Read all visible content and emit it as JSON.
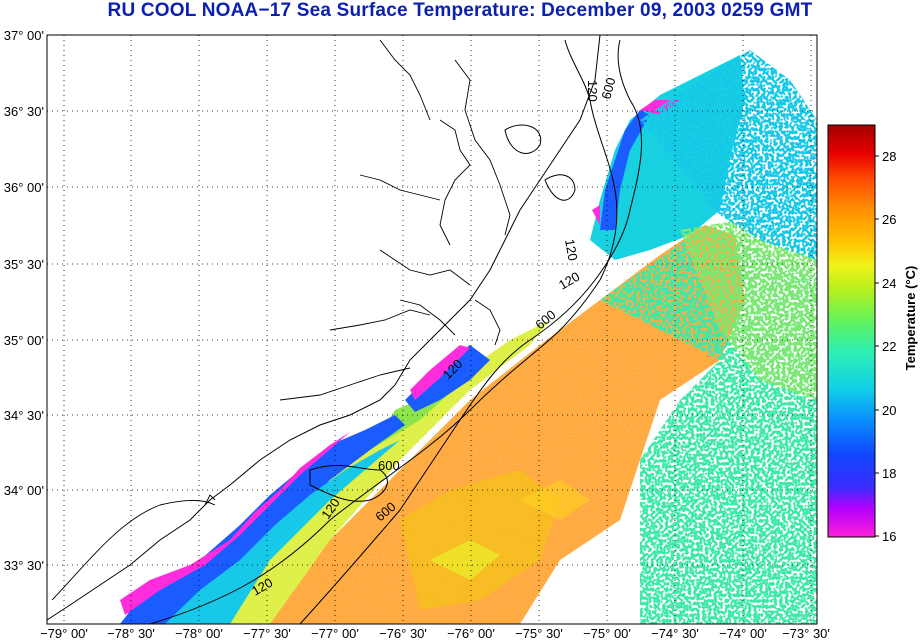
{
  "title": "RU COOL  NOAA−17  Sea Surface Temperature:  December 09, 2003 0259 GMT",
  "map": {
    "lat_labels": [
      "37° 00'",
      "36° 30'",
      "36° 00'",
      "35° 30'",
      "35° 00'",
      "34° 30'",
      "34° 00'",
      "33° 30'"
    ],
    "lon_labels": [
      "−79° 00'",
      "−78° 30'",
      "−78° 00'",
      "−77° 30'",
      "−77° 00'",
      "−76° 30'",
      "−76° 00'",
      "−75° 30'",
      "−75° 00'",
      "−74° 30'",
      "−74° 00'",
      "−73° 30'"
    ],
    "contour_labels": [
      "120",
      "600",
      "120",
      "600",
      "120",
      "120",
      "600",
      "120",
      "600",
      "120"
    ]
  },
  "colorbar": {
    "label": "Temperature (°C)",
    "ticks": [
      "28",
      "26",
      "24",
      "22",
      "20",
      "18",
      "16"
    ],
    "range": [
      16,
      29
    ],
    "colors": [
      "#ff1fd9",
      "#b200ff",
      "#3a2cff",
      "#1146ff",
      "#0a8cff",
      "#10cfe6",
      "#2ef0b4",
      "#5ef262",
      "#b6f01c",
      "#f2f21a",
      "#ffc000",
      "#ff8a00",
      "#ff4a00",
      "#e80000",
      "#a40000"
    ]
  }
}
